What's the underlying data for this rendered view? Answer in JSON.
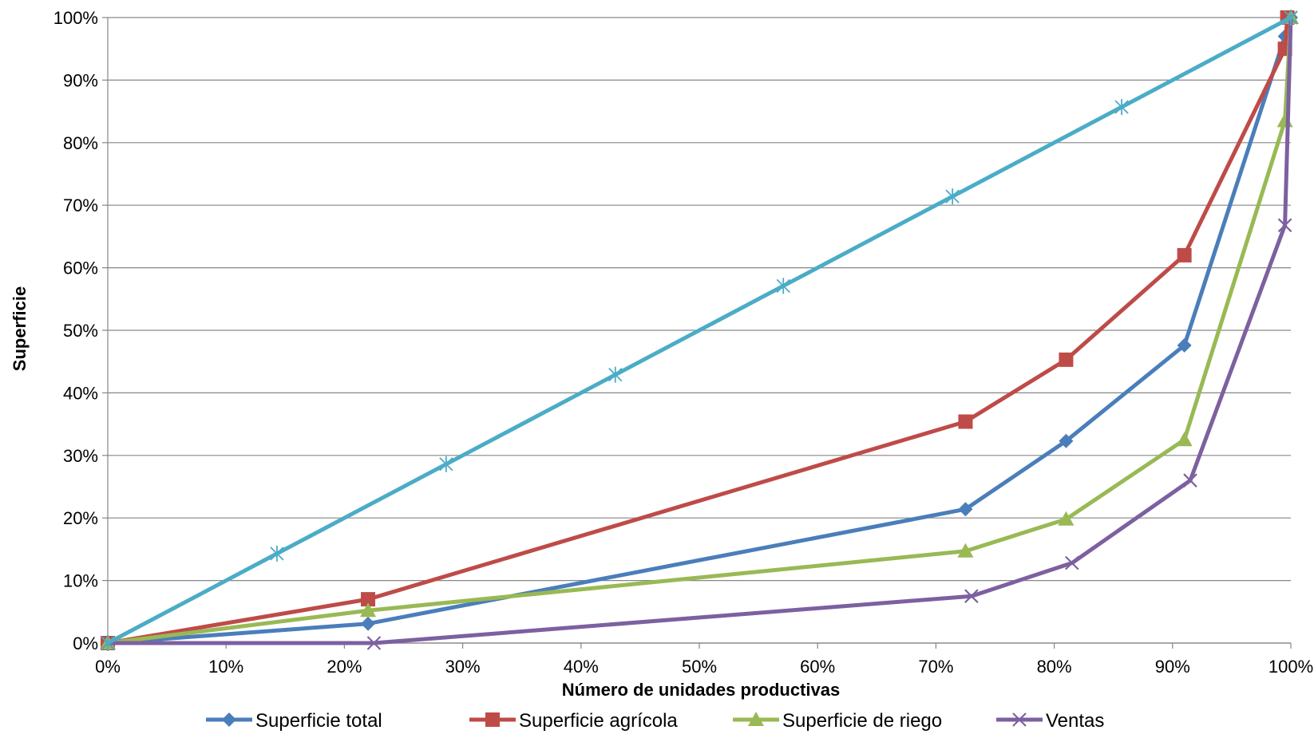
{
  "chart_data": {
    "type": "line",
    "title": "",
    "xlabel": "Número de unidades productivas",
    "ylabel": "Superficie",
    "xlim": [
      0,
      100
    ],
    "ylim": [
      0,
      100
    ],
    "x_ticks": [
      "0%",
      "10%",
      "20%",
      "30%",
      "40%",
      "50%",
      "60%",
      "70%",
      "80%",
      "90%",
      "100%"
    ],
    "y_ticks": [
      "0%",
      "10%",
      "20%",
      "30%",
      "40%",
      "50%",
      "60%",
      "70%",
      "80%",
      "90%",
      "100%"
    ],
    "grid": "horizontal",
    "legend_position": "bottom",
    "series": [
      {
        "name": "Superficie total",
        "color": "#4A7EBB",
        "marker": "diamond",
        "points": [
          [
            0,
            0
          ],
          [
            22,
            3.1
          ],
          [
            72.5,
            21.4
          ],
          [
            81,
            32.3
          ],
          [
            91,
            47.6
          ],
          [
            99.5,
            97
          ],
          [
            100,
            100
          ]
        ]
      },
      {
        "name": "Superficie agrícola",
        "color": "#BE4B48",
        "marker": "square",
        "points": [
          [
            0,
            0
          ],
          [
            22,
            7
          ],
          [
            72.5,
            35.4
          ],
          [
            81,
            45.3
          ],
          [
            91,
            62
          ],
          [
            99.5,
            95
          ],
          [
            99.7,
            100
          ]
        ]
      },
      {
        "name": "Superficie de riego",
        "color": "#98B954",
        "marker": "triangle",
        "points": [
          [
            0,
            0
          ],
          [
            22,
            5.2
          ],
          [
            72.5,
            14.7
          ],
          [
            81,
            19.8
          ],
          [
            91,
            32.5
          ],
          [
            99.5,
            83.5
          ],
          [
            100,
            100
          ]
        ]
      },
      {
        "name": "Ventas",
        "color": "#7D60A0",
        "marker": "x",
        "points": [
          [
            0,
            0
          ],
          [
            22.5,
            0
          ],
          [
            73,
            7.5
          ],
          [
            81.5,
            12.8
          ],
          [
            91.5,
            26
          ],
          [
            99.5,
            66.8
          ],
          [
            100,
            100
          ]
        ]
      },
      {
        "name": "",
        "color": "#4BACC6",
        "marker": "star",
        "points": [
          [
            0,
            0
          ],
          [
            14.3,
            14.3
          ],
          [
            28.6,
            28.6
          ],
          [
            42.9,
            42.9
          ],
          [
            57.1,
            57.1
          ],
          [
            71.4,
            71.4
          ],
          [
            85.7,
            85.7
          ],
          [
            100,
            100
          ]
        ]
      }
    ]
  }
}
